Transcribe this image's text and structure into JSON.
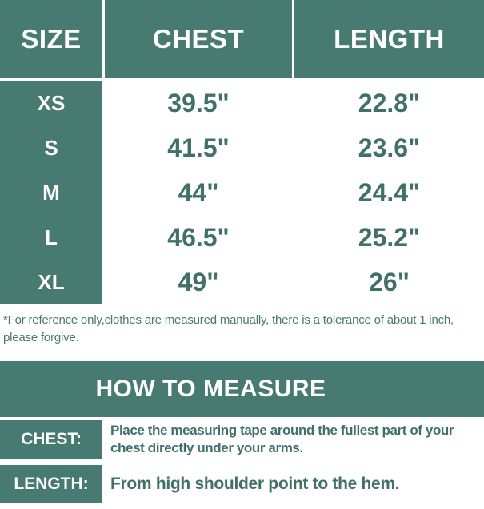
{
  "chart_data": {
    "type": "table",
    "columns": [
      "SIZE",
      "CHEST",
      "LENGTH"
    ],
    "rows": [
      [
        "XS",
        "39.5\"",
        "22.8\""
      ],
      [
        "S",
        "41.5\"",
        "23.6\""
      ],
      [
        "M",
        "44\"",
        "24.4\""
      ],
      [
        "L",
        "46.5\"",
        "25.2\""
      ],
      [
        "XL",
        "49\"",
        "26\""
      ]
    ]
  },
  "note": {
    "text": "*For reference only,clothes are measured manually, there is a tolerance of about 1 inch, please forgive."
  },
  "measure_guide": {
    "title": "HOW TO MEASURE",
    "items": [
      {
        "label": "CHEST:",
        "text": "Place the measuring tape around the fullest part of your chest directly under your arms."
      },
      {
        "label": "LENGTH:",
        "text": "From high shoulder point to the hem."
      }
    ]
  },
  "colors": {
    "teal": "#477A70",
    "text_teal": "#3F7168",
    "background": "#FFFFFF"
  }
}
